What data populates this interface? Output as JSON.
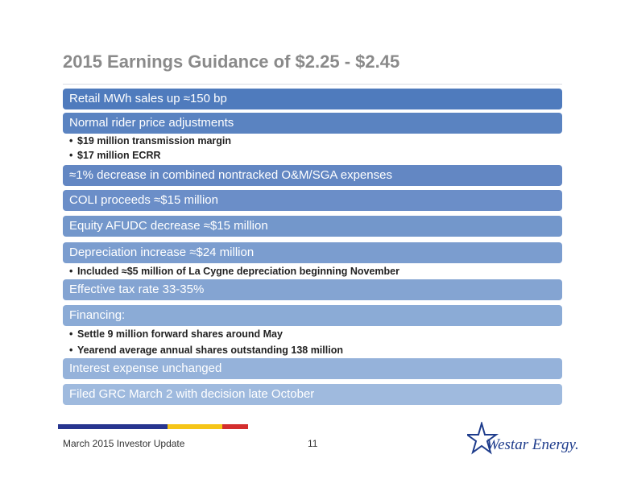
{
  "title": "2015 Earnings Guidance of $2.25 - $2.45",
  "items": [
    {
      "label": "Retail MWh sales up ≈150 bp"
    },
    {
      "label": "Normal rider price adjustments",
      "subs": [
        "$19 million transmission margin",
        "$17 million ECRR"
      ]
    },
    {
      "label": "≈1% decrease in combined nontracked O&M/SGA expenses"
    },
    {
      "label": "COLI proceeds ≈$15 million"
    },
    {
      "label": "Equity AFUDC decrease ≈$15 million"
    },
    {
      "label": "Depreciation increase ≈$24 million",
      "subs": [
        "Included ≈$5 million of La Cygne depreciation beginning November"
      ]
    },
    {
      "label": "Effective tax rate 33-35%"
    },
    {
      "label": "Financing:",
      "subs": [
        "Settle 9 million forward shares around May",
        "Yearend average annual shares outstanding 138 million"
      ]
    },
    {
      "label": "Interest expense unchanged"
    },
    {
      "label": "Filed GRC March 2 with decision late October"
    }
  ],
  "colors": {
    "bar_gradient": [
      "#4f7bbd",
      "#5a83c1",
      "#6387c3",
      "#6b8ec8",
      "#7397cb",
      "#7b9dcf",
      "#84a4d2",
      "#8babd6",
      "#95b2da",
      "#9fbade"
    ],
    "stripe_blue": "#27358f",
    "stripe_yellow": "#f5c518",
    "stripe_red": "#d42e2e"
  },
  "footer": {
    "left": "March 2015 Investor Update",
    "page_number": "11"
  },
  "logo": {
    "text": "Westar Energy.",
    "icon": "star-icon"
  }
}
